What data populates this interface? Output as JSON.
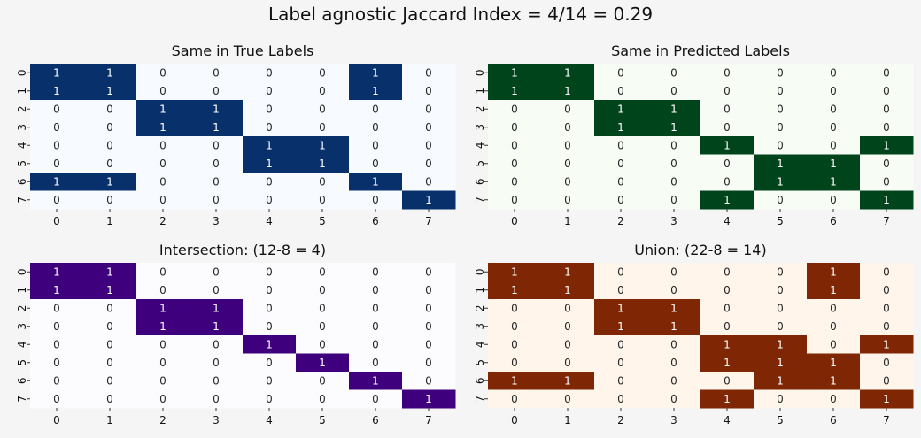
{
  "figure": {
    "title": "Label agnostic Jaccard Index = 4/14 = 0.29"
  },
  "chart_data": [
    {
      "type": "heatmap",
      "title": "Same in True Labels",
      "colormap": "Blues",
      "colors": {
        "low": "#f7fbff",
        "high": "#08306b"
      },
      "xticks": [
        "0",
        "1",
        "2",
        "3",
        "4",
        "5",
        "6",
        "7"
      ],
      "yticks": [
        "0",
        "1",
        "2",
        "3",
        "4",
        "5",
        "6",
        "7"
      ],
      "values": [
        [
          1,
          1,
          0,
          0,
          0,
          0,
          1,
          0
        ],
        [
          1,
          1,
          0,
          0,
          0,
          0,
          1,
          0
        ],
        [
          0,
          0,
          1,
          1,
          0,
          0,
          0,
          0
        ],
        [
          0,
          0,
          1,
          1,
          0,
          0,
          0,
          0
        ],
        [
          0,
          0,
          0,
          0,
          1,
          1,
          0,
          0
        ],
        [
          0,
          0,
          0,
          0,
          1,
          1,
          0,
          0
        ],
        [
          1,
          1,
          0,
          0,
          0,
          0,
          1,
          0
        ],
        [
          0,
          0,
          0,
          0,
          0,
          0,
          0,
          1
        ]
      ]
    },
    {
      "type": "heatmap",
      "title": "Same in Predicted Labels",
      "colormap": "Greens",
      "colors": {
        "low": "#f7fcf5",
        "high": "#00441b"
      },
      "xticks": [
        "0",
        "1",
        "2",
        "3",
        "4",
        "5",
        "6",
        "7"
      ],
      "yticks": [
        "0",
        "1",
        "2",
        "3",
        "4",
        "5",
        "6",
        "7"
      ],
      "values": [
        [
          1,
          1,
          0,
          0,
          0,
          0,
          0,
          0
        ],
        [
          1,
          1,
          0,
          0,
          0,
          0,
          0,
          0
        ],
        [
          0,
          0,
          1,
          1,
          0,
          0,
          0,
          0
        ],
        [
          0,
          0,
          1,
          1,
          0,
          0,
          0,
          0
        ],
        [
          0,
          0,
          0,
          0,
          1,
          0,
          0,
          1
        ],
        [
          0,
          0,
          0,
          0,
          0,
          1,
          1,
          0
        ],
        [
          0,
          0,
          0,
          0,
          0,
          1,
          1,
          0
        ],
        [
          0,
          0,
          0,
          0,
          1,
          0,
          0,
          1
        ]
      ]
    },
    {
      "type": "heatmap",
      "title": "Intersection: (12-8 = 4)",
      "colormap": "Purples",
      "colors": {
        "low": "#fcfbfd",
        "high": "#3f007d"
      },
      "xticks": [
        "0",
        "1",
        "2",
        "3",
        "4",
        "5",
        "6",
        "7"
      ],
      "yticks": [
        "0",
        "1",
        "2",
        "3",
        "4",
        "5",
        "6",
        "7"
      ],
      "values": [
        [
          1,
          1,
          0,
          0,
          0,
          0,
          0,
          0
        ],
        [
          1,
          1,
          0,
          0,
          0,
          0,
          0,
          0
        ],
        [
          0,
          0,
          1,
          1,
          0,
          0,
          0,
          0
        ],
        [
          0,
          0,
          1,
          1,
          0,
          0,
          0,
          0
        ],
        [
          0,
          0,
          0,
          0,
          1,
          0,
          0,
          0
        ],
        [
          0,
          0,
          0,
          0,
          0,
          1,
          0,
          0
        ],
        [
          0,
          0,
          0,
          0,
          0,
          0,
          1,
          0
        ],
        [
          0,
          0,
          0,
          0,
          0,
          0,
          0,
          1
        ]
      ]
    },
    {
      "type": "heatmap",
      "title": "Union: (22-8 = 14)",
      "colormap": "Oranges",
      "colors": {
        "low": "#fff5eb",
        "high": "#7f2704"
      },
      "xticks": [
        "0",
        "1",
        "2",
        "3",
        "4",
        "5",
        "6",
        "7"
      ],
      "yticks": [
        "0",
        "1",
        "2",
        "3",
        "4",
        "5",
        "6",
        "7"
      ],
      "values": [
        [
          1,
          1,
          0,
          0,
          0,
          0,
          1,
          0
        ],
        [
          1,
          1,
          0,
          0,
          0,
          0,
          1,
          0
        ],
        [
          0,
          0,
          1,
          1,
          0,
          0,
          0,
          0
        ],
        [
          0,
          0,
          1,
          1,
          0,
          0,
          0,
          0
        ],
        [
          0,
          0,
          0,
          0,
          1,
          1,
          0,
          1
        ],
        [
          0,
          0,
          0,
          0,
          1,
          1,
          1,
          0
        ],
        [
          1,
          1,
          0,
          0,
          0,
          1,
          1,
          0
        ],
        [
          0,
          0,
          0,
          0,
          1,
          0,
          0,
          1
        ]
      ]
    }
  ]
}
